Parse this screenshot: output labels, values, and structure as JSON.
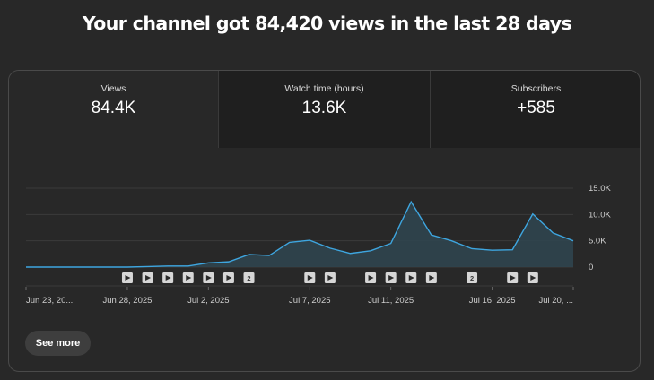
{
  "header": {
    "title": "Your channel got 84,420 views in the last 28 days"
  },
  "tabs": [
    {
      "label": "Views",
      "value": "84.4K",
      "active": true
    },
    {
      "label": "Watch time (hours)",
      "value": "13.6K",
      "active": false
    },
    {
      "label": "Subscribers",
      "value": "+585",
      "active": false
    }
  ],
  "see_more_label": "See more",
  "colors": {
    "line": "#3ea6e0",
    "area": "#2f4550",
    "grid": "#3a3a3a",
    "marker": "#d6d6d6"
  },
  "chart_data": {
    "type": "area",
    "series_metric": "Views",
    "x": [
      "Jun 23",
      "Jun 24",
      "Jun 25",
      "Jun 26",
      "Jun 27",
      "Jun 28",
      "Jun 29",
      "Jun 30",
      "Jul 1",
      "Jul 2",
      "Jul 3",
      "Jul 4",
      "Jul 5",
      "Jul 6",
      "Jul 7",
      "Jul 8",
      "Jul 9",
      "Jul 10",
      "Jul 11",
      "Jul 12",
      "Jul 13",
      "Jul 14",
      "Jul 15",
      "Jul 16",
      "Jul 17",
      "Jul 18",
      "Jul 19",
      "Jul 20"
    ],
    "values": [
      0,
      0,
      0,
      0,
      0,
      0,
      100,
      200,
      200,
      800,
      1000,
      2400,
      2200,
      4700,
      5100,
      3600,
      2600,
      3100,
      4500,
      12400,
      6100,
      5000,
      3500,
      3200,
      3300,
      10100,
      6500,
      5000
    ],
    "yticks": [
      "15.0K",
      "10.0K",
      "5.0K",
      "0"
    ],
    "ytick_values": [
      15000,
      10000,
      5000,
      0
    ],
    "ylim": [
      0,
      15000
    ],
    "xtick_labels": [
      {
        "label": "Jun 23, 20...",
        "index": 0
      },
      {
        "label": "Jun 28, 2025",
        "index": 5
      },
      {
        "label": "Jul 2, 2025",
        "index": 9
      },
      {
        "label": "Jul 7, 2025",
        "index": 14
      },
      {
        "label": "Jul 11, 2025",
        "index": 18
      },
      {
        "label": "Jul 16, 2025",
        "index": 23
      },
      {
        "label": "Jul 20, ...",
        "index": 27
      }
    ],
    "video_markers": [
      {
        "index": 5,
        "count": 1
      },
      {
        "index": 6,
        "count": 1
      },
      {
        "index": 7,
        "count": 1
      },
      {
        "index": 8,
        "count": 1
      },
      {
        "index": 9,
        "count": 1
      },
      {
        "index": 10,
        "count": 1
      },
      {
        "index": 11,
        "count": 2
      },
      {
        "index": 14,
        "count": 1
      },
      {
        "index": 15,
        "count": 1
      },
      {
        "index": 17,
        "count": 1
      },
      {
        "index": 18,
        "count": 1
      },
      {
        "index": 19,
        "count": 1
      },
      {
        "index": 20,
        "count": 1
      },
      {
        "index": 22,
        "count": 2
      },
      {
        "index": 24,
        "count": 1
      },
      {
        "index": 25,
        "count": 1
      }
    ],
    "grid": true
  }
}
